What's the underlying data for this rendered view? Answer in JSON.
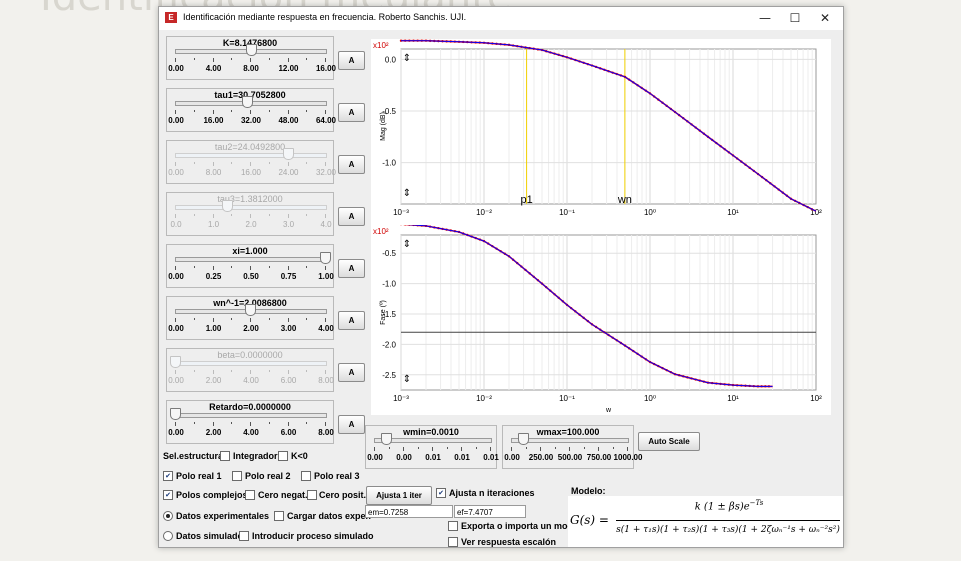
{
  "window": {
    "title": "Identificación mediante respuesta en frecuencia. Roberto Sanchis. UJI.",
    "minimize": "—",
    "maximize": "☐",
    "close": "✕"
  },
  "sliders": [
    {
      "id": "K",
      "title": "K=8.1476800",
      "labels": [
        "0.00",
        "4.00",
        "8.00",
        "12.00",
        "16.00"
      ],
      "value": 8.14768,
      "min": 0,
      "max": 16,
      "enabled": true
    },
    {
      "id": "tau1",
      "title": "tau1=30.7052800",
      "labels": [
        "0.00",
        "16.00",
        "32.00",
        "48.00",
        "64.00"
      ],
      "value": 30.70528,
      "min": 0,
      "max": 64,
      "enabled": true
    },
    {
      "id": "tau2",
      "title": "tau2=24.0492800",
      "labels": [
        "0.00",
        "8.00",
        "16.00",
        "24.00",
        "32.00"
      ],
      "value": 24.04928,
      "min": 0,
      "max": 32,
      "enabled": false
    },
    {
      "id": "tau3",
      "title": "tau3=1.3812000",
      "labels": [
        "0.0",
        "1.0",
        "2.0",
        "3.0",
        "4.0"
      ],
      "value": 1.3812,
      "min": 0,
      "max": 4,
      "enabled": false
    },
    {
      "id": "xi",
      "title": "xi=1.000",
      "labels": [
        "0.00",
        "0.25",
        "0.50",
        "0.75",
        "1.00"
      ],
      "value": 1.0,
      "min": 0,
      "max": 1,
      "enabled": true
    },
    {
      "id": "wn",
      "title": "wn^-1=2.0086800",
      "labels": [
        "0.00",
        "1.00",
        "2.00",
        "3.00",
        "4.00"
      ],
      "value": 2.00868,
      "min": 0,
      "max": 4,
      "enabled": true
    },
    {
      "id": "beta",
      "title": "beta=0.0000000",
      "labels": [
        "0.00",
        "2.00",
        "4.00",
        "6.00",
        "8.00"
      ],
      "value": 0,
      "min": 0,
      "max": 8,
      "enabled": false
    },
    {
      "id": "retardo",
      "title": "Retardo=0.0000000",
      "labels": [
        "0.00",
        "2.00",
        "4.00",
        "6.00",
        "8.00"
      ],
      "value": 0,
      "min": 0,
      "max": 8,
      "enabled": true
    }
  ],
  "a_button": "A",
  "wmin": {
    "title": "wmin=0.0010",
    "labels": [
      "0.00",
      "0.00",
      "0.01",
      "0.01",
      "0.01"
    ],
    "value": 0.1
  },
  "wmax": {
    "title": "wmax=100.000",
    "labels": [
      "0.00",
      "250.00",
      "500.00",
      "750.00",
      "1000.00"
    ],
    "value": 0.1
  },
  "auto_scale": "Auto Scale",
  "structure": {
    "label": "Sel.estructura:",
    "integrador": {
      "label": "Integrador",
      "checked": false
    },
    "k_neg": {
      "label": "K<0",
      "checked": false
    },
    "polo1": {
      "label": "Polo real 1",
      "checked": true
    },
    "polo2": {
      "label": "Polo real 2",
      "checked": false
    },
    "polo3": {
      "label": "Polo real 3",
      "checked": false
    },
    "complejos": {
      "label": "Polos complejos",
      "checked": true
    },
    "cero_neg": {
      "label": "Cero negat.",
      "checked": false
    },
    "cero_pos": {
      "label": "Cero posit.",
      "checked": false
    }
  },
  "data_source": {
    "experimental": {
      "label": "Datos experimentales",
      "selected": true
    },
    "simulados": {
      "label": "Datos simulados",
      "selected": false
    },
    "cargar": {
      "label": "Cargar datos exper.",
      "checked": false
    },
    "introducir": {
      "label": "Introducir proceso simulado",
      "checked": false
    }
  },
  "fit": {
    "button": "Ajusta 1 iter",
    "n_iter": {
      "label": "Ajusta n iteraciones",
      "checked": true
    },
    "em": "em=0.7258",
    "ef": "ef=7.4707",
    "exporta": {
      "label": "Exporta o importa un modelo",
      "checked": false
    },
    "escalon": {
      "label": "Ver respuesta escalón",
      "checked": false
    }
  },
  "modelo": {
    "label": "Modelo:",
    "lhs": "G(s) =",
    "numerator": "k (1 ± βs)e",
    "numerator_exp": "−Ts",
    "denominator": "s(1 + τ₁s)(1 + τ₂s)(1 + τ₃s)(1 + 2ζωₙ⁻¹s + ωₙ⁻²s²)"
  },
  "chart_data": [
    {
      "type": "line",
      "ylabel": "Mag (dB)",
      "scale_label": "x10²",
      "x_scale": "log",
      "xlim": [
        0.001,
        100
      ],
      "ylim": [
        -1.4,
        0.1
      ],
      "x_ticks": [
        "10⁻³",
        "10⁻²",
        "10⁻¹",
        "10⁰",
        "10¹",
        "10²"
      ],
      "y_ticks": [
        "0.0",
        "-0.5",
        "-1.0"
      ],
      "markers": [
        {
          "label": "p1",
          "x": 0.0326
        },
        {
          "label": "wn",
          "x": 0.498
        }
      ],
      "series": [
        {
          "color": "#ff0000",
          "x": [
            0.001,
            0.002,
            0.005,
            0.01,
            0.02,
            0.05,
            0.1,
            0.2,
            0.5,
            1,
            2,
            5,
            10,
            20,
            50,
            100
          ],
          "y": [
            0.18,
            0.18,
            0.17,
            0.16,
            0.14,
            0.09,
            0.02,
            -0.06,
            -0.17,
            -0.33,
            -0.51,
            -0.75,
            -0.93,
            -1.11,
            -1.35,
            -1.47
          ]
        },
        {
          "color": "#0000ff",
          "x": [
            0.001,
            0.002,
            0.005,
            0.01,
            0.02,
            0.05,
            0.1,
            0.2,
            0.5,
            1,
            2,
            5,
            10,
            20,
            50,
            100
          ],
          "y": [
            0.18,
            0.18,
            0.17,
            0.16,
            0.14,
            0.09,
            0.02,
            -0.06,
            -0.17,
            -0.33,
            -0.51,
            -0.75,
            -0.93,
            -1.11,
            -1.35,
            -1.47
          ]
        }
      ]
    },
    {
      "type": "line",
      "xlabel": "w",
      "ylabel": "Fase (º)",
      "scale_label": "x10²",
      "x_scale": "log",
      "xlim": [
        0.001,
        100
      ],
      "ylim": [
        -2.75,
        -0.2
      ],
      "x_ticks": [
        "10⁻³",
        "10⁻²",
        "10⁻¹",
        "10⁰",
        "10¹",
        "10²"
      ],
      "y_ticks": [
        "-0.5",
        "-1.0",
        "-1.5",
        "-2.0",
        "-2.5"
      ],
      "hline": -1.8,
      "series": [
        {
          "color": "#ff0000",
          "x": [
            0.001,
            0.002,
            0.005,
            0.01,
            0.02,
            0.05,
            0.1,
            0.2,
            0.5,
            1,
            2,
            5,
            10,
            20,
            30
          ],
          "y": [
            -0.02,
            -0.05,
            -0.15,
            -0.3,
            -0.55,
            -1.0,
            -1.35,
            -1.67,
            -2.02,
            -2.29,
            -2.49,
            -2.63,
            -2.67,
            -2.69,
            -2.69
          ]
        },
        {
          "color": "#0000ff",
          "x": [
            0.001,
            0.002,
            0.005,
            0.01,
            0.02,
            0.05,
            0.1,
            0.2,
            0.5,
            1,
            2,
            5,
            10,
            20,
            30
          ],
          "y": [
            -0.02,
            -0.05,
            -0.15,
            -0.3,
            -0.55,
            -1.0,
            -1.35,
            -1.67,
            -2.02,
            -2.29,
            -2.49,
            -2.63,
            -2.67,
            -2.69,
            -2.69
          ]
        }
      ]
    }
  ]
}
